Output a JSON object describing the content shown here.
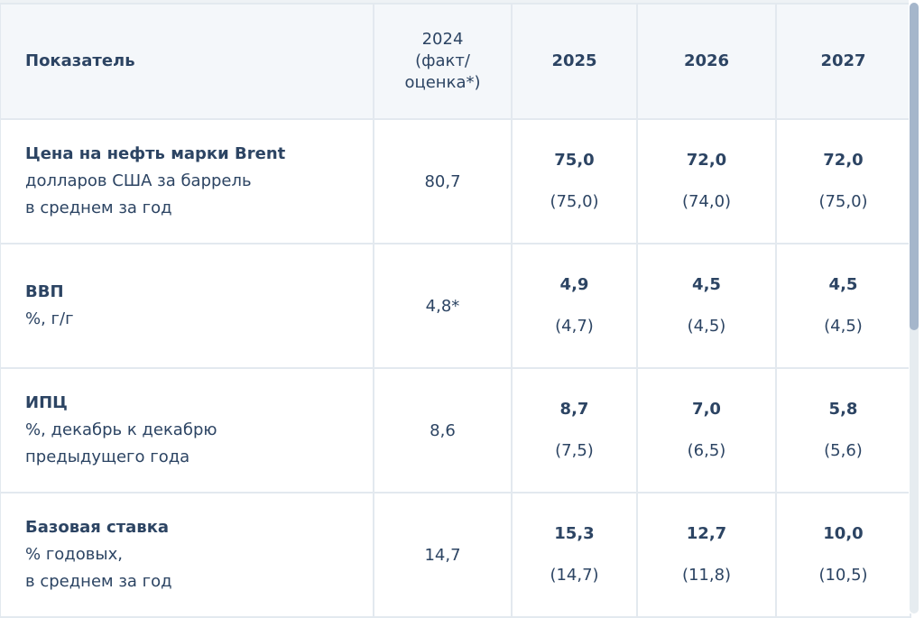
{
  "header": {
    "indicator": "Показатель",
    "y2024": [
      "2024",
      "(факт/",
      "оценка*)"
    ],
    "y2025": "2025",
    "y2026": "2026",
    "y2027": "2027"
  },
  "rows": [
    {
      "title": "Цена на нефть марки Brent",
      "sub1": "долларов США за баррель",
      "sub2": "в среднем за год",
      "v2024": "80,7",
      "v2025": "75,0",
      "p2025": "(75,0)",
      "v2026": "72,0",
      "p2026": "(74,0)",
      "v2027": "72,0",
      "p2027": "(75,0)"
    },
    {
      "title": "ВВП",
      "sub1": "%, г/г",
      "sub2": "",
      "v2024": "4,8*",
      "v2025": "4,9",
      "p2025": "(4,7)",
      "v2026": "4,5",
      "p2026": "(4,5)",
      "v2027": "4,5",
      "p2027": "(4,5)"
    },
    {
      "title": "ИПЦ",
      "sub1": "%, декабрь к декабрю",
      "sub2": "предыдущего года",
      "v2024": "8,6",
      "v2025": "8,7",
      "p2025": "(7,5)",
      "v2026": "7,0",
      "p2026": "(6,5)",
      "v2027": "5,8",
      "p2027": "(5,6)"
    },
    {
      "title": "Базовая ставка",
      "sub1": "% годовых,",
      "sub2": "в среднем за год",
      "v2024": "14,7",
      "v2025": "15,3",
      "p2025": "(14,7)",
      "v2026": "12,7",
      "p2026": "(11,8)",
      "v2027": "10,0",
      "p2027": "(10,5)"
    }
  ]
}
